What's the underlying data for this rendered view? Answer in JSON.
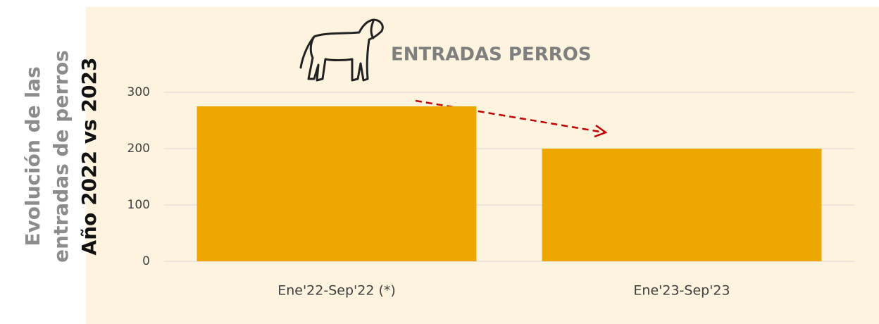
{
  "chart_data": {
    "type": "bar",
    "title": "ENTRADAS PERROS",
    "ylabel": [
      "Evolución de las",
      "entradas de perros"
    ],
    "ylabel_emphasis": "Año 2022 vs 2023",
    "categories": [
      "Ene'22-Sep'22 (*)",
      "Ene'23-Sep'23"
    ],
    "values": [
      275,
      200
    ],
    "color": "#eea600",
    "ylim": [
      0,
      300
    ],
    "yticks": [
      0,
      100,
      200,
      300
    ],
    "grid": true
  }
}
